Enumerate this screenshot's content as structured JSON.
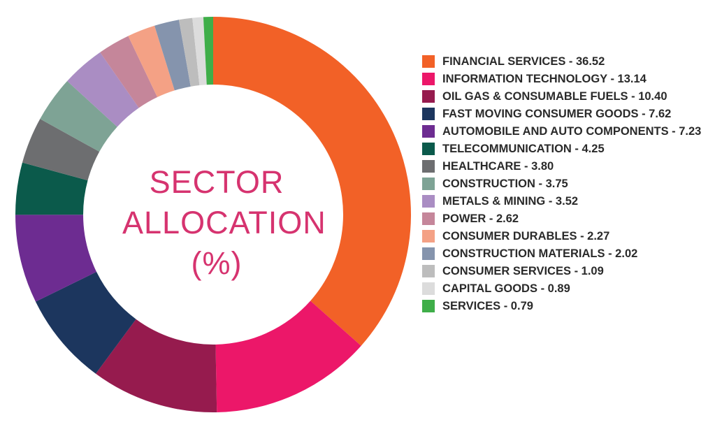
{
  "chart_data": {
    "type": "donut",
    "title": "SECTOR ALLOCATION (%)",
    "categories": [
      "FINANCIAL SERVICES - 36.52",
      "INFORMATION TECHNOLOGY - 13.14",
      "OIL GAS & CONSUMABLE FUELS - 10.40",
      "FAST MOVING CONSUMER GOODS - 7.62",
      "AUTOMOBILE AND AUTO COMPONENTS - 7.23",
      "TELECOMMUNICATION - 4.25",
      "HEALTHCARE - 3.80",
      "CONSTRUCTION - 3.75",
      "METALS & MINING - 3.52",
      "POWER - 2.62",
      "CONSUMER DURABLES - 2.27",
      "CONSTRUCTION MATERIALS - 2.02",
      "CONSUMER SERVICES - 1.09",
      "CAPITAL GOODS - 0.89",
      "SERVICES - 0.79"
    ],
    "values": [
      36.52,
      13.14,
      10.4,
      7.62,
      7.23,
      4.25,
      3.8,
      3.75,
      3.52,
      2.62,
      2.27,
      2.02,
      1.09,
      0.89,
      0.79
    ],
    "colors": [
      "#f26127",
      "#ec1769",
      "#961b4e",
      "#1c365e",
      "#6d2c91",
      "#0b5a4b",
      "#6d6e70",
      "#7ea395",
      "#aa8dc3",
      "#c5869a",
      "#f4a185",
      "#8594ad",
      "#bdbdbd",
      "#dcdcdc",
      "#3fae49"
    ]
  }
}
